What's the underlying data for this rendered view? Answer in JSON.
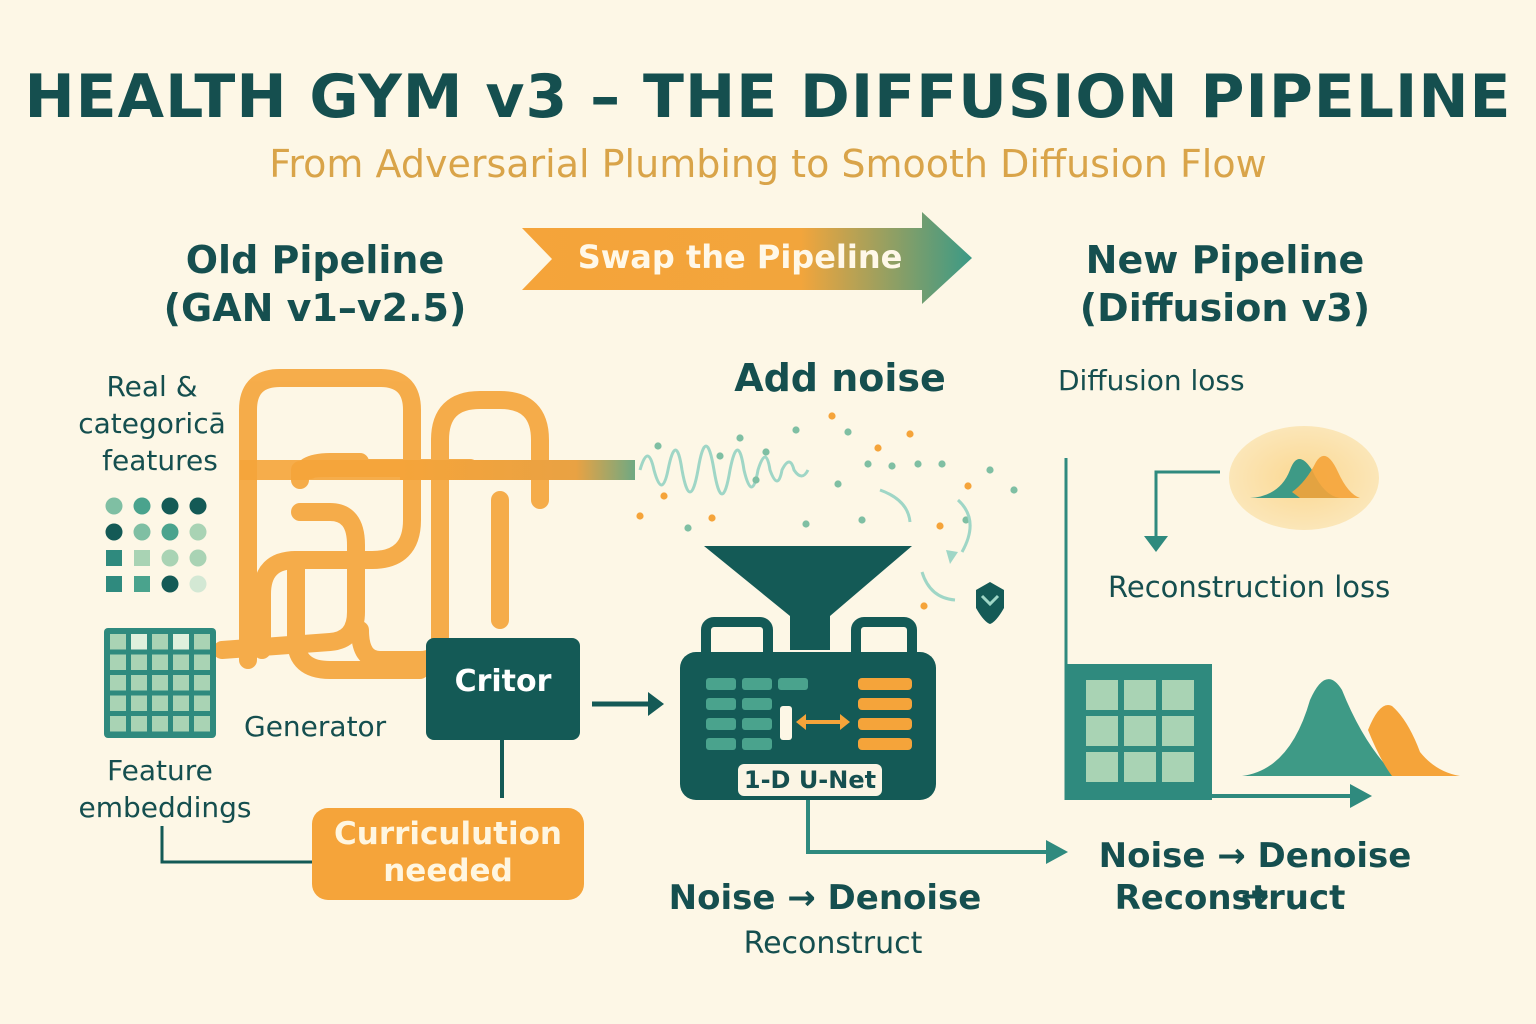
{
  "header": {
    "title": "HEALTH GYM v3 – THE DIFFUSION PIPELINE",
    "subtitle": "From Adversarial Plumbing to Smooth Diffusion Flow"
  },
  "banner": {
    "label": "Swap the Pipeline"
  },
  "old_pipeline": {
    "title": "Old Pipeline",
    "version": "(GAN v1–v2.5)",
    "input_label_line1": "Real &",
    "input_label_line2": "categoricā",
    "input_label_line3": "features",
    "generator_label": "Generator",
    "embeddings_line1": "Feature",
    "embeddings_line2": "embeddings",
    "critic_label": "Critor",
    "curriculum_line1": "Curriculution",
    "curriculum_line2": "needed"
  },
  "middle": {
    "add_noise_label": "Add noise",
    "unet_label": "1-D U-Net",
    "caption_line1": "Noise → Denoise",
    "caption_line2": "Reconstruct"
  },
  "new_pipeline": {
    "title": "New Pipeline",
    "version": "(Diffusion v3)",
    "diffusion_loss": "Diffusion loss",
    "reconstruction_loss": "Reconstruction loss",
    "caption_line1": "Noise → Denoise →",
    "caption_line2": "Reconstruct"
  },
  "colors": {
    "background": "#fdf7e6",
    "teal_dark": "#154f4f",
    "teal": "#2f8a7e",
    "orange": "#f5a43a",
    "mint": "#a9d3b4"
  }
}
